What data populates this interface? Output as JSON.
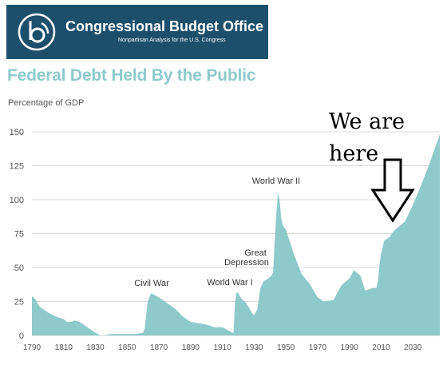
{
  "header": {
    "org_name": "Congressional Budget Office",
    "tagline": "Nonpartisan Analysis for the U.S. Congress",
    "logo_icon": "cbo-logo-icon",
    "banner_color": "#1d4f6d"
  },
  "annotation": {
    "lines": [
      "We are",
      "here"
    ],
    "arrow_icon": "down-arrow-icon"
  },
  "chart_data": {
    "type": "area",
    "title": "Federal Debt Held By the Public",
    "ylabel": "Percentage of GDP",
    "xlabel": "",
    "fill_color": "#8ec9cc",
    "xlim": [
      1790,
      2047
    ],
    "ylim": [
      0,
      150
    ],
    "x_ticks": [
      "1790",
      "1810",
      "1830",
      "1850",
      "1870",
      "1890",
      "1910",
      "1930",
      "1950",
      "1970",
      "1990",
      "2010",
      "2030"
    ],
    "y_ticks": [
      "0",
      "25",
      "50",
      "75",
      "100",
      "125",
      "150"
    ],
    "grid": "horizontal",
    "series": [
      {
        "x": [
          1790,
          1792,
          1795,
          1800,
          1805,
          1810,
          1812,
          1815,
          1817,
          1820,
          1825,
          1830,
          1833,
          1835,
          1840,
          1845,
          1850,
          1855,
          1860,
          1861,
          1863,
          1865,
          1867,
          1870,
          1875,
          1880,
          1885,
          1890,
          1895,
          1900,
          1905,
          1910,
          1915,
          1916,
          1917,
          1918,
          1919,
          1920,
          1922,
          1925,
          1929,
          1930,
          1932,
          1934,
          1936,
          1939,
          1941,
          1942,
          1943,
          1944,
          1945,
          1946,
          1947,
          1948,
          1950,
          1955,
          1960,
          1965,
          1970,
          1974,
          1980,
          1985,
          1990,
          1993,
          1997,
          2000,
          2005,
          2007,
          2008,
          2009,
          2010,
          2012,
          2015,
          2018,
          2020,
          2025,
          2030,
          2035,
          2040,
          2047
        ],
        "y": [
          29,
          27,
          21,
          17,
          14,
          12,
          10,
          10,
          11,
          10,
          6,
          2,
          0,
          0,
          1,
          1,
          1,
          1,
          2,
          5,
          25,
          31,
          30,
          28,
          24,
          20,
          14,
          10,
          9,
          8,
          6,
          6,
          3,
          2,
          2,
          25,
          32,
          31,
          27,
          24,
          16,
          15,
          19,
          35,
          40,
          42,
          44,
          47,
          70,
          90,
          105,
          100,
          87,
          81,
          78,
          60,
          45,
          38,
          28,
          25,
          26,
          37,
          42,
          48,
          44,
          33,
          35,
          35,
          40,
          52,
          60,
          70,
          72,
          77,
          79,
          84,
          96,
          110,
          125,
          148
        ]
      }
    ],
    "annotations": [
      {
        "text": "Civil War",
        "x": 1865
      },
      {
        "text": "World War I",
        "x": 1918
      },
      {
        "text": "Great",
        "x": 1930
      },
      {
        "text": "Depression",
        "x": 1930
      },
      {
        "text": "World War II",
        "x": 1946
      }
    ]
  }
}
